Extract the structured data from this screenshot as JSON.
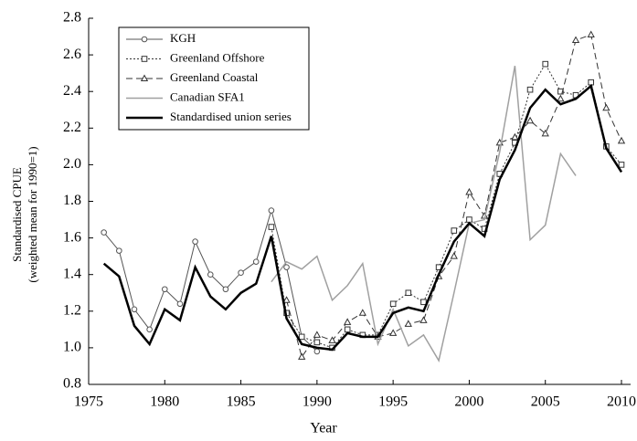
{
  "chart_data": {
    "type": "line",
    "x_label": "Year",
    "y_label": [
      "Standardised CPUE",
      "(weighted mean for 1990=1)"
    ],
    "x": [
      1976,
      1977,
      1978,
      1979,
      1980,
      1981,
      1982,
      1983,
      1984,
      1985,
      1986,
      1987,
      1988,
      1989,
      1990,
      1991,
      1992,
      1993,
      1994,
      1995,
      1996,
      1997,
      1998,
      1999,
      2000,
      2001,
      2002,
      2003,
      2004,
      2005,
      2006,
      2007,
      2008,
      2009,
      2010
    ],
    "xlim": [
      1975,
      2010
    ],
    "xticks": [
      1975,
      1980,
      1985,
      1990,
      1995,
      2000,
      2005,
      2010
    ],
    "ylim": [
      0.8,
      2.8
    ],
    "yticks": [
      {
        "value": 0.8,
        "label": "0.8"
      },
      {
        "value": 1.0,
        "label": "1.0"
      },
      {
        "value": 1.2,
        "label": "1.2"
      },
      {
        "value": 1.4,
        "label": "1.4"
      },
      {
        "value": 1.6,
        "label": "1.6"
      },
      {
        "value": 1.8,
        "label": "1.8"
      },
      {
        "value": 2.0,
        "label": "2.0"
      },
      {
        "value": 2.2,
        "label": "2.2"
      },
      {
        "value": 2.4,
        "label": "2.4"
      },
      {
        "value": 2.6,
        "label": "2.6"
      },
      {
        "value": 2.8,
        "label": "2.8"
      }
    ],
    "grid": false,
    "legend": "top-left",
    "series": [
      {
        "name": "KGH",
        "color": "#555555",
        "width": 1,
        "dash": "none",
        "marker": "circle",
        "values": [
          1.63,
          1.53,
          1.21,
          1.1,
          1.32,
          1.24,
          1.58,
          1.4,
          1.32,
          1.41,
          1.47,
          1.75,
          1.44,
          1.06,
          0.98,
          null,
          null,
          null,
          null,
          null,
          null,
          null,
          null,
          null,
          null,
          null,
          null,
          null,
          null,
          null,
          null,
          null,
          null,
          null,
          null
        ]
      },
      {
        "name": "Greenland Offshore",
        "color": "#333333",
        "width": 1,
        "dash": "2 2",
        "marker": "square",
        "values": [
          null,
          null,
          null,
          null,
          null,
          null,
          null,
          null,
          null,
          null,
          null,
          1.66,
          1.19,
          1.06,
          1.03,
          1.0,
          1.1,
          1.07,
          1.07,
          1.24,
          1.3,
          1.25,
          1.44,
          1.64,
          1.7,
          1.65,
          1.95,
          2.12,
          2.41,
          2.55,
          2.4,
          2.38,
          2.45,
          2.1,
          2.0
        ]
      },
      {
        "name": "Greenland Coastal",
        "color": "#333333",
        "width": 1,
        "dash": "7 4",
        "marker": "triangle",
        "values": [
          null,
          null,
          null,
          null,
          null,
          null,
          null,
          null,
          null,
          null,
          null,
          null,
          1.26,
          0.95,
          1.07,
          1.04,
          1.14,
          1.19,
          1.06,
          1.08,
          1.13,
          1.15,
          1.39,
          1.5,
          1.85,
          1.72,
          2.12,
          2.15,
          2.24,
          2.17,
          2.36,
          2.68,
          2.71,
          2.31,
          2.13
        ]
      },
      {
        "name": "Canadian SFA1",
        "color": "#a0a0a0",
        "width": 1.5,
        "dash": "none",
        "marker": "none",
        "values": [
          null,
          null,
          null,
          null,
          null,
          null,
          null,
          null,
          null,
          null,
          null,
          1.36,
          1.47,
          1.43,
          1.5,
          1.26,
          1.34,
          1.46,
          1.02,
          1.21,
          1.01,
          1.07,
          0.93,
          1.3,
          1.68,
          1.7,
          2.07,
          2.54,
          1.59,
          1.67,
          2.06,
          1.94,
          null,
          null,
          null
        ]
      },
      {
        "name": "Standardised union series",
        "color": "#000000",
        "width": 2.5,
        "dash": "none",
        "marker": "none",
        "values": [
          1.46,
          1.39,
          1.12,
          1.02,
          1.21,
          1.15,
          1.44,
          1.28,
          1.21,
          1.3,
          1.35,
          1.61,
          1.16,
          1.02,
          1.0,
          0.99,
          1.08,
          1.06,
          1.06,
          1.19,
          1.22,
          1.2,
          1.4,
          1.58,
          1.68,
          1.61,
          1.92,
          2.08,
          2.31,
          2.41,
          2.33,
          2.36,
          2.43,
          2.09,
          1.96
        ]
      }
    ]
  }
}
